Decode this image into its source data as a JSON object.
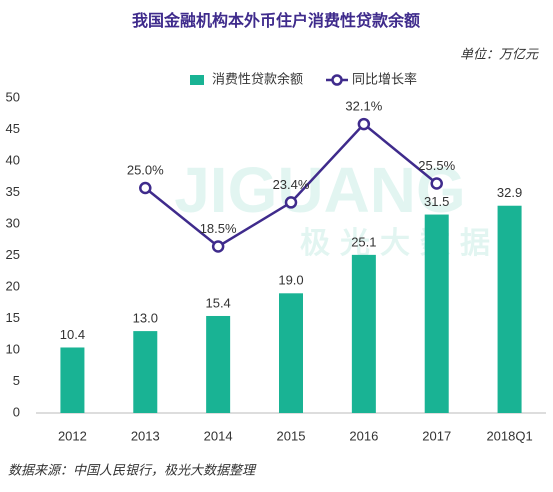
{
  "chart_data": {
    "type": "bar",
    "title": "我国金融机构本外币住户消费性贷款余额",
    "unit": "单位：万亿元",
    "source": "数据来源：中国人民银行，极光大数据整理",
    "watermark": [
      "JIGUANG",
      "极光大数据"
    ],
    "categories": [
      "2012",
      "2013",
      "2014",
      "2015",
      "2016",
      "2017",
      "2018Q1"
    ],
    "series": [
      {
        "name": "消费性贷款余额",
        "type": "bar",
        "color": "#19b394",
        "values": [
          10.4,
          13.0,
          15.4,
          19.0,
          25.1,
          31.5,
          32.9
        ],
        "value_labels": [
          "10.4",
          "13.0",
          "15.4",
          "19.0",
          "25.1",
          "31.5",
          "32.9"
        ]
      },
      {
        "name": "同比增长率",
        "type": "line",
        "axis": "y2",
        "color": "#3f2b8c",
        "values": [
          null,
          25.0,
          18.5,
          23.4,
          32.1,
          25.5,
          null
        ],
        "value_labels": [
          null,
          "25.0%",
          "18.5%",
          "23.4%",
          "32.1%",
          "25.5%",
          null
        ]
      }
    ],
    "ylim": [
      0,
      50
    ],
    "yticks": [
      0,
      5,
      10,
      15,
      20,
      25,
      30,
      35,
      40,
      45,
      50
    ],
    "y2lim": [
      0,
      35
    ],
    "grid": false,
    "legend": "top"
  }
}
